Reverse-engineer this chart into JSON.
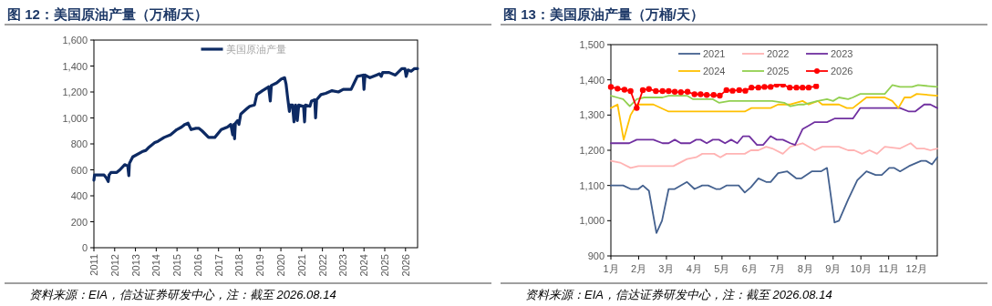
{
  "chart_data": [
    {
      "type": "line",
      "title": "图 12：美国原油产量（万桶/天）",
      "legend": "top",
      "annotations": [
        "资料来源：EIA，信达证券研发中心，注：截至 2026.08.14"
      ],
      "xlim": [
        2011,
        2026.58
      ],
      "ylim": [
        0,
        1600
      ],
      "xticks": [
        2011,
        2012,
        2013,
        2014,
        2015,
        2016,
        2017,
        2018,
        2019,
        2020,
        2021,
        2022,
        2023,
        2024,
        2025,
        2026
      ],
      "yticks": [
        0,
        200,
        400,
        600,
        800,
        {
          "value": 1000,
          "label": "1,000"
        },
        {
          "value": 1200,
          "label": "1,200"
        },
        {
          "value": 1400,
          "label": "1,400"
        },
        {
          "value": 1600,
          "label": "1,600"
        }
      ],
      "series": [
        {
          "name": "美国原油产量",
          "color": "#0d2a63",
          "x": [
            2011.0,
            2011.03,
            2011.49,
            2011.59,
            2011.69,
            2011.73,
            2011.82,
            2012.1,
            2012.25,
            2012.48,
            2012.63,
            2012.68,
            2012.71,
            2012.87,
            2013.32,
            2013.5,
            2013.62,
            2013.77,
            2013.93,
            2014.08,
            2014.38,
            2014.69,
            2014.99,
            2015.22,
            2015.38,
            2015.53,
            2015.68,
            2015.91,
            2016.06,
            2016.21,
            2016.52,
            2016.67,
            2016.82,
            2017.13,
            2017.43,
            2017.59,
            2017.68,
            2017.74,
            2017.77,
            2017.81,
            2017.92,
            2017.98,
            2018.07,
            2018.35,
            2018.5,
            2018.73,
            2018.84,
            2019.11,
            2019.41,
            2019.49,
            2019.54,
            2019.8,
            2020.02,
            2020.18,
            2020.25,
            2020.33,
            2020.41,
            2020.45,
            2020.56,
            2020.63,
            2020.71,
            2020.79,
            2020.86,
            2021.09,
            2021.14,
            2021.18,
            2021.4,
            2021.47,
            2021.63,
            2021.67,
            2021.72,
            2021.93,
            2022.16,
            2022.46,
            2022.77,
            2023.0,
            2023.38,
            2023.53,
            2023.68,
            2023.96,
            2024.0,
            2024.05,
            2024.29,
            2024.6,
            2024.75,
            2024.83,
            2024.9,
            2025.21,
            2025.51,
            2025.82,
            2025.97,
            2026.03,
            2026.12,
            2026.27,
            2026.43,
            2026.58
          ],
          "values": [
            520,
            560,
            560,
            540,
            510,
            560,
            580,
            580,
            600,
            640,
            630,
            555,
            650,
            700,
            740,
            750,
            770,
            790,
            810,
            820,
            850,
            870,
            910,
            930,
            950,
            960,
            910,
            920,
            920,
            900,
            850,
            850,
            850,
            910,
            930,
            950,
            870,
            950,
            840,
            960,
            980,
            950,
            1030,
            1070,
            1090,
            1100,
            1180,
            1210,
            1240,
            1130,
            1250,
            1270,
            1300,
            1310,
            1260,
            1150,
            1050,
            1100,
            1100,
            970,
            1100,
            980,
            1100,
            1090,
            970,
            1100,
            1090,
            1130,
            1140,
            1000,
            1140,
            1180,
            1190,
            1210,
            1200,
            1220,
            1220,
            1270,
            1320,
            1330,
            1220,
            1330,
            1310,
            1330,
            1340,
            1320,
            1350,
            1350,
            1330,
            1380,
            1380,
            1320,
            1370,
            1360,
            1380,
            1380
          ]
        }
      ]
    },
    {
      "type": "line",
      "title": "图 13：美国原油产量（万桶/天）",
      "legend": "top",
      "annotations": [
        "资料来源：EIA，信达证券研发中心，注：截至 2026.08.14"
      ],
      "xlim": [
        1,
        12.75
      ],
      "ylim": [
        900,
        1500
      ],
      "xticks": [
        {
          "value": 1,
          "label": "1月"
        },
        {
          "value": 2,
          "label": "2月"
        },
        {
          "value": 3,
          "label": "3月"
        },
        {
          "value": 4,
          "label": "4月"
        },
        {
          "value": 5,
          "label": "5月"
        },
        {
          "value": 6,
          "label": "6月"
        },
        {
          "value": 7,
          "label": "7月"
        },
        {
          "value": 8,
          "label": "8月"
        },
        {
          "value": 9,
          "label": "9月"
        },
        {
          "value": 10,
          "label": "10月"
        },
        {
          "value": 11,
          "label": "11月"
        },
        {
          "value": 12,
          "label": "12月"
        }
      ],
      "yticks": [
        900,
        {
          "value": 1000,
          "label": "1,000"
        },
        {
          "value": 1100,
          "label": "1,100"
        },
        {
          "value": 1200,
          "label": "1,200"
        },
        {
          "value": 1300,
          "label": "1,300"
        },
        {
          "value": 1400,
          "label": "1,400"
        },
        {
          "value": 1500,
          "label": "1,500"
        }
      ],
      "series": [
        {
          "name": "2021",
          "color": "#44618f",
          "x": [
            1.0,
            1.44,
            1.71,
            1.99,
            2.15,
            2.37,
            2.64,
            2.84,
            3.08,
            3.3,
            3.74,
            4.01,
            4.29,
            4.5,
            4.78,
            4.94,
            5.16,
            5.6,
            5.82,
            6.04,
            6.31,
            6.59,
            6.75,
            7.02,
            7.35,
            7.68,
            7.85,
            8.23,
            8.56,
            8.78,
            9.05,
            9.21,
            9.54,
            9.87,
            10.2,
            10.53,
            10.75,
            11.02,
            11.19,
            11.41,
            11.73,
            12.17,
            12.34,
            12.56,
            12.75
          ],
          "values": [
            1100,
            1100,
            1090,
            1090,
            1100,
            1085,
            965,
            1000,
            1090,
            1090,
            1110,
            1090,
            1100,
            1100,
            1090,
            1090,
            1100,
            1100,
            1080,
            1095,
            1120,
            1110,
            1110,
            1135,
            1140,
            1120,
            1120,
            1140,
            1140,
            1150,
            995,
            1000,
            1060,
            1115,
            1140,
            1130,
            1130,
            1150,
            1150,
            1140,
            1155,
            1170,
            1170,
            1160,
            1180
          ]
        },
        {
          "name": "2022",
          "color": "#ffb3b3",
          "x": [
            1.0,
            1.33,
            1.71,
            1.99,
            2.48,
            3.25,
            3.74,
            4.07,
            4.29,
            4.72,
            4.94,
            5.16,
            5.82,
            6.04,
            6.31,
            6.59,
            6.81,
            7.19,
            7.46,
            7.9,
            8.34,
            8.61,
            9.21,
            9.54,
            9.76,
            10.04,
            10.31,
            10.58,
            10.86,
            11.41,
            11.79,
            12.01,
            12.28,
            12.5,
            12.75
          ],
          "values": [
            1170,
            1165,
            1150,
            1155,
            1155,
            1155,
            1175,
            1180,
            1190,
            1190,
            1180,
            1190,
            1190,
            1200,
            1200,
            1210,
            1205,
            1190,
            1210,
            1220,
            1200,
            1210,
            1210,
            1200,
            1200,
            1190,
            1200,
            1190,
            1210,
            1205,
            1220,
            1205,
            1205,
            1200,
            1205
          ]
        },
        {
          "name": "2023",
          "color": "#7030a0",
          "x": [
            1.0,
            1.66,
            1.93,
            2.53,
            2.86,
            3.08,
            3.3,
            3.52,
            3.85,
            4.07,
            4.23,
            4.45,
            4.67,
            4.89,
            5.11,
            5.33,
            5.55,
            5.76,
            5.98,
            6.26,
            6.48,
            6.75,
            6.97,
            7.19,
            7.46,
            7.63,
            7.9,
            8.12,
            8.34,
            8.78,
            9.05,
            9.49,
            9.71,
            9.98,
            10.2,
            11.41,
            11.73,
            11.95,
            12.28,
            12.5,
            12.75
          ],
          "values": [
            1220,
            1220,
            1230,
            1230,
            1220,
            1220,
            1230,
            1220,
            1220,
            1230,
            1230,
            1220,
            1230,
            1230,
            1220,
            1230,
            1220,
            1240,
            1240,
            1215,
            1215,
            1240,
            1230,
            1230,
            1220,
            1215,
            1260,
            1270,
            1280,
            1280,
            1290,
            1290,
            1290,
            1320,
            1320,
            1320,
            1310,
            1310,
            1330,
            1330,
            1320
          ]
        },
        {
          "name": "2024",
          "color": "#ffc000",
          "x": [
            1.0,
            1.24,
            1.46,
            1.71,
            1.93,
            2.53,
            3.08,
            5.82,
            6.06,
            6.75,
            7.02,
            7.46,
            7.9,
            8.12,
            8.45,
            8.61,
            9.21,
            9.49,
            9.71,
            10.2,
            10.86,
            11.13,
            11.35,
            11.57,
            11.79,
            12.01,
            12.75
          ],
          "values": [
            1320,
            1330,
            1230,
            1300,
            1330,
            1330,
            1310,
            1310,
            1320,
            1320,
            1330,
            1330,
            1340,
            1330,
            1340,
            1330,
            1330,
            1320,
            1320,
            1350,
            1350,
            1340,
            1320,
            1350,
            1350,
            1360,
            1355
          ]
        },
        {
          "name": "2025",
          "color": "#92d050",
          "x": [
            1.0,
            1.22,
            1.44,
            1.68,
            1.93,
            2.2,
            2.86,
            3.08,
            3.74,
            3.96,
            4.67,
            4.89,
            5.27,
            5.82,
            6.15,
            6.81,
            7.24,
            7.46,
            7.79,
            7.96,
            8.45,
            8.78,
            9.0,
            9.21,
            9.54,
            9.71,
            9.98,
            10.86,
            11.13,
            11.41,
            11.84,
            12.06,
            12.75
          ],
          "values": [
            1355,
            1350,
            1345,
            1325,
            1345,
            1350,
            1350,
            1355,
            1355,
            1345,
            1345,
            1335,
            1340,
            1340,
            1340,
            1340,
            1335,
            1325,
            1330,
            1330,
            1340,
            1345,
            1340,
            1350,
            1345,
            1350,
            1360,
            1360,
            1385,
            1380,
            1380,
            1385,
            1380
          ]
        },
        {
          "name": "2026",
          "color": "#ff0000",
          "marker": "circle",
          "x": [
            1.0,
            1.24,
            1.49,
            1.71,
            1.93,
            2.15,
            2.37,
            2.62,
            2.86,
            3.08,
            3.3,
            3.52,
            3.76,
            4.01,
            4.23,
            4.45,
            4.7,
            4.92,
            5.16,
            5.38,
            5.62,
            5.84,
            6.06,
            6.31,
            6.53,
            6.75,
            6.97,
            7.19,
            7.44,
            7.68,
            7.9,
            8.12,
            8.39
          ],
          "values": [
            1380,
            1375,
            1372,
            1368,
            1320,
            1371,
            1374,
            1368,
            1368,
            1368,
            1366,
            1365,
            1366,
            1359,
            1359,
            1357,
            1357,
            1355,
            1371,
            1369,
            1371,
            1369,
            1378,
            1378,
            1380,
            1380,
            1386,
            1386,
            1378,
            1378,
            1378,
            1378,
            1382
          ]
        }
      ]
    }
  ]
}
